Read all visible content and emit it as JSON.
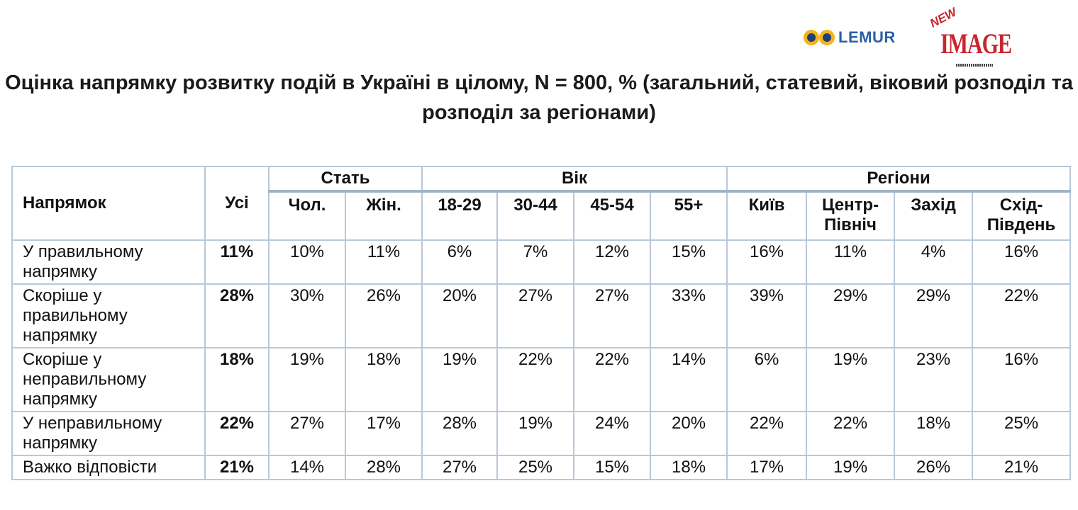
{
  "logos": {
    "lemur_text": "LEMUR",
    "image_logo_new": "NEW",
    "image_logo_text": "IMAGE",
    "lemur_color": "#2c5fa5",
    "image_color": "#c8262c"
  },
  "title": "Оцінка напрямку розвитку подій в Україні в цілому, N = 800, % (загальний, статевий, віковий розподіл та розподіл за регіонами)",
  "table": {
    "header": {
      "direction": "Напрямок",
      "all": "Усі",
      "groups": [
        "Стать",
        "Вік",
        "Регіони"
      ],
      "columns": [
        "Чол.",
        "Жін.",
        "18-29",
        "30-44",
        "45-54",
        "55+",
        "Київ",
        "Центр-Північ",
        "Захід",
        "Схід-Південь"
      ]
    },
    "rows": [
      {
        "label": "У правильному напрямку",
        "all": "11%",
        "values": [
          "10%",
          "11%",
          "6%",
          "7%",
          "12%",
          "15%",
          "16%",
          "11%",
          "4%",
          "16%"
        ]
      },
      {
        "label": "Скоріше у правильному напрямку",
        "all": "28%",
        "values": [
          "30%",
          "26%",
          "20%",
          "27%",
          "27%",
          "33%",
          "39%",
          "29%",
          "29%",
          "22%"
        ]
      },
      {
        "label": "Скоріше у неправильному напрямку",
        "all": "18%",
        "values": [
          "19%",
          "18%",
          "19%",
          "22%",
          "22%",
          "14%",
          "6%",
          "19%",
          "23%",
          "16%"
        ]
      },
      {
        "label": "У неправильному напрямку",
        "all": "22%",
        "values": [
          "27%",
          "17%",
          "28%",
          "19%",
          "24%",
          "20%",
          "22%",
          "22%",
          "18%",
          "25%"
        ]
      },
      {
        "label": "Важко відповісти",
        "all": "21%",
        "values": [
          "14%",
          "28%",
          "27%",
          "25%",
          "15%",
          "18%",
          "17%",
          "19%",
          "26%",
          "21%"
        ]
      }
    ]
  }
}
